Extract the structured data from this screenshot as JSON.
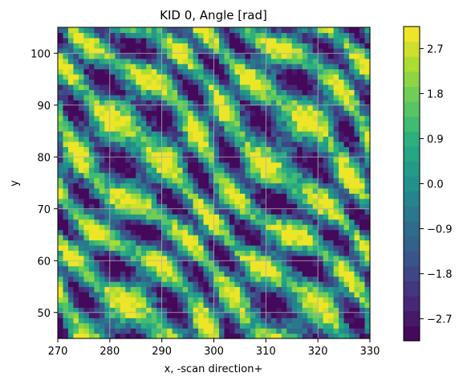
{
  "chart_data": {
    "type": "heatmap",
    "title": "KID 0, Angle [rad]",
    "xlabel": "x, -scan direction+",
    "ylabel": "y",
    "xlim": [
      270,
      330
    ],
    "ylim": [
      45,
      105
    ],
    "xticks": [
      "270",
      "280",
      "290",
      "300",
      "310",
      "320",
      "330"
    ],
    "yticks": [
      "50",
      "60",
      "70",
      "80",
      "90",
      "100"
    ],
    "grid": true,
    "colormap": "viridis",
    "colorbar": {
      "range": [
        -3.14,
        3.14
      ],
      "levels": 21,
      "ticks": [
        "2.7",
        "1.8",
        "0.9",
        "0.0",
        "−0.9",
        "−1.8",
        "−2.7"
      ],
      "tick_values": [
        2.7,
        1.8,
        0.9,
        0.0,
        -0.9,
        -1.8,
        -2.7
      ]
    },
    "field": {
      "description": "angle values in radians over x in [270,330], y in [45,105]; diagonal stripe texture, values span full -pi..pi range",
      "grid_nx": 60,
      "grid_ny": 60
    }
  }
}
